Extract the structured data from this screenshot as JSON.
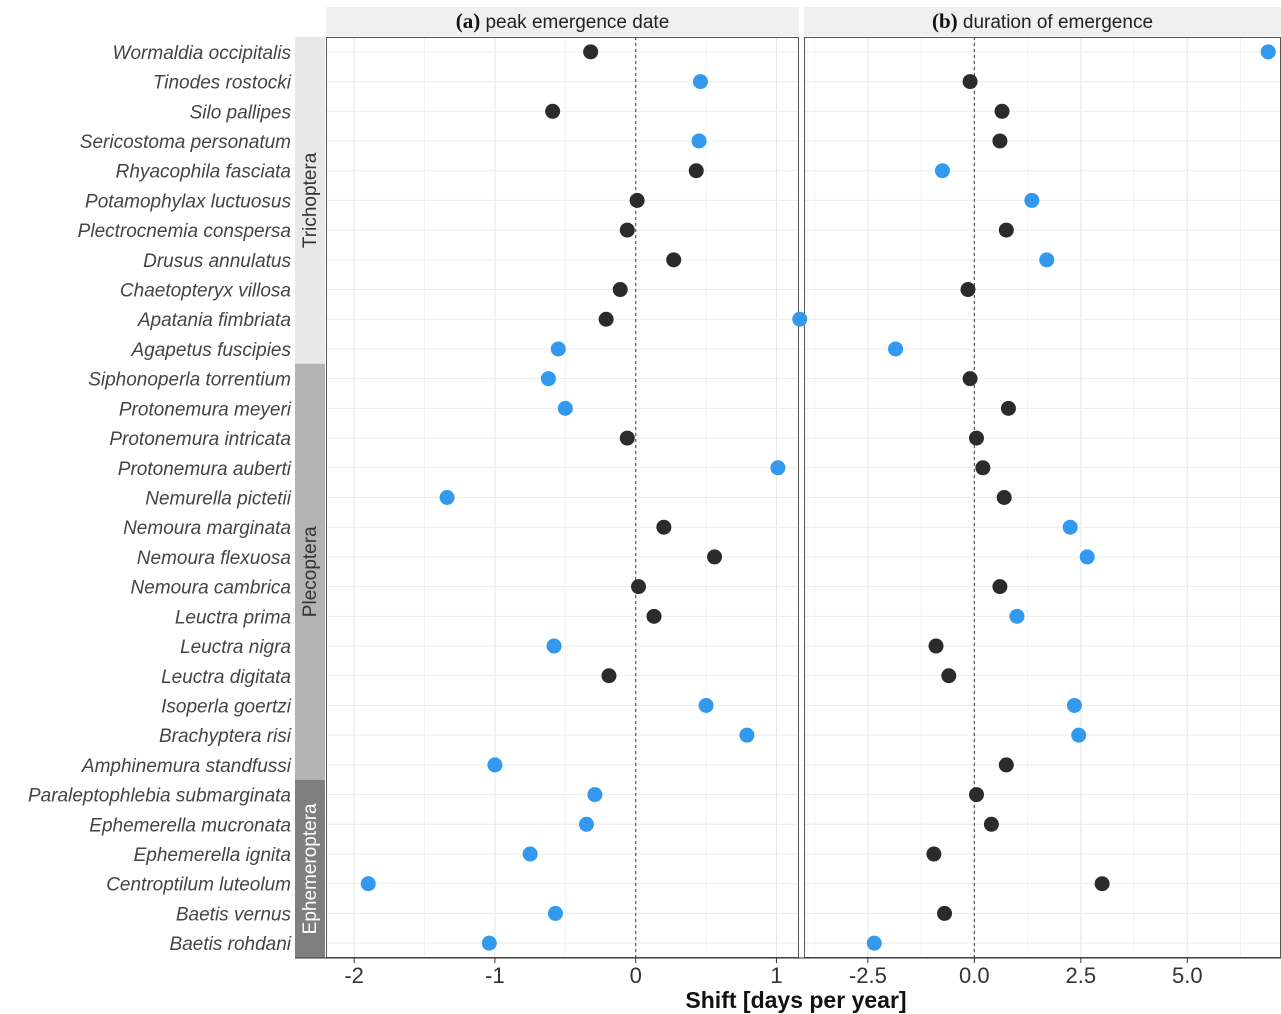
{
  "chart_data": {
    "type": "scatter",
    "xlabel": "Shift [days per year]",
    "colors": {
      "non_significant": "#2b2b2b",
      "significant": "#3399ee",
      "trichoptera_band": "#e8e8e8",
      "plecoptera_band": "#b3b3b3",
      "ephemeroptera_band": "#7f7f7f",
      "strip_bg": "#f0f0f0"
    },
    "species": [
      "Wormaldia occipitalis",
      "Tinodes rostocki",
      "Silo pallipes",
      "Sericostoma personatum",
      "Rhyacophila fasciata",
      "Potamophylax luctuosus",
      "Plectrocnemia conspersa",
      "Drusus annulatus",
      "Chaetopteryx villosa",
      "Apatania fimbriata",
      "Agapetus fuscipies",
      "Siphonoperla torrentium",
      "Protonemura meyeri",
      "Protonemura intricata",
      "Protonemura auberti",
      "Nemurella pictetii",
      "Nemoura marginata",
      "Nemoura flexuosa",
      "Nemoura cambrica",
      "Leuctra prima",
      "Leuctra nigra",
      "Leuctra digitata",
      "Isoperla goertzi",
      "Brachyptera risi",
      "Amphinemura standfussi",
      "Paraleptophlebia submarginata",
      "Ephemerella mucronata",
      "Ephemerella ignita",
      "Centroptilum luteolum",
      "Baetis vernus",
      "Baetis rohdani"
    ],
    "orders": [
      {
        "name": "Trichoptera",
        "count": 11
      },
      {
        "name": "Plecoptera",
        "count": 14
      },
      {
        "name": "Ephemeroptera",
        "count": 6
      }
    ],
    "panels": [
      {
        "tag": "(a)",
        "title": "peak emergence date",
        "xlim": [
          -2.2,
          1.16
        ],
        "ticks": [
          -2,
          -1,
          0,
          1
        ],
        "tick_labels": [
          "-2",
          "-1",
          "0",
          "1"
        ],
        "values": [
          -0.32,
          0.46,
          -0.59,
          0.45,
          0.43,
          0.01,
          -0.06,
          0.27,
          -0.11,
          -0.21,
          -0.55,
          -0.62,
          -0.5,
          -0.06,
          1.01,
          -1.34,
          0.2,
          0.56,
          0.02,
          0.13,
          -0.58,
          -0.19,
          0.5,
          0.79,
          -1.0,
          -0.29,
          -0.35,
          -0.75,
          -1.9,
          -0.57,
          -1.04
        ],
        "significant": [
          false,
          true,
          false,
          true,
          false,
          false,
          false,
          false,
          false,
          false,
          true,
          true,
          true,
          false,
          true,
          true,
          false,
          false,
          false,
          false,
          true,
          false,
          true,
          true,
          true,
          true,
          true,
          true,
          true,
          true,
          true
        ]
      },
      {
        "tag": "(b)",
        "title": "duration of emergence",
        "xlim": [
          -4.0,
          7.2
        ],
        "ticks": [
          -2.5,
          0.0,
          2.5,
          5.0
        ],
        "tick_labels": [
          "-2.5",
          "0.0",
          "2.5",
          "5.0"
        ],
        "values": [
          6.9,
          -0.1,
          0.65,
          0.6,
          -0.75,
          1.35,
          0.75,
          1.7,
          -0.15,
          -4.1,
          -1.85,
          -0.1,
          0.8,
          0.05,
          0.2,
          0.7,
          2.25,
          2.65,
          0.6,
          1.0,
          -0.9,
          -0.6,
          2.35,
          2.45,
          0.75,
          0.05,
          0.4,
          -0.95,
          3.0,
          -0.7,
          -2.35
        ],
        "significant": [
          true,
          false,
          false,
          false,
          true,
          true,
          false,
          true,
          false,
          true,
          true,
          false,
          false,
          false,
          false,
          false,
          true,
          true,
          false,
          true,
          false,
          false,
          true,
          true,
          false,
          false,
          false,
          false,
          false,
          false,
          true
        ]
      }
    ]
  }
}
